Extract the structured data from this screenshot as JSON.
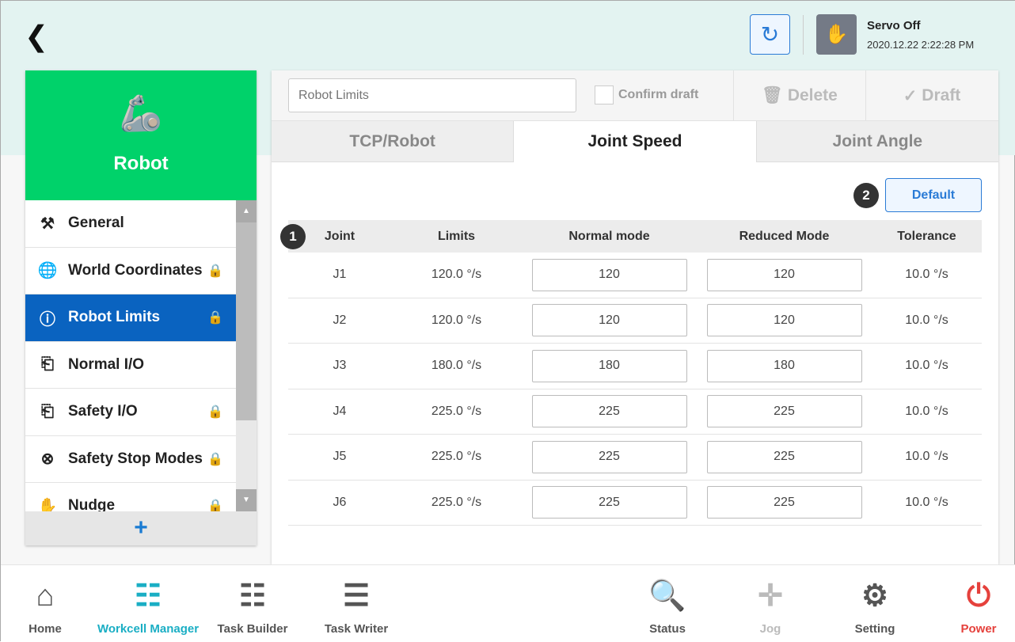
{
  "header": {
    "back_icon": "chevron-left-icon",
    "servo_status": "Servo Off",
    "datetime": "2020.12.22 2:22:28 PM"
  },
  "sidebar": {
    "title": "Robot",
    "add_label": "+",
    "items": [
      {
        "label": "General",
        "icon": "robot-arm-icon",
        "locked": false
      },
      {
        "label": "World Coordinates",
        "icon": "globe-icon",
        "locked": true
      },
      {
        "label": "Robot Limits",
        "icon": "limit-icon",
        "locked": true,
        "selected": true
      },
      {
        "label": "Normal I/O",
        "icon": "io-icon",
        "locked": false
      },
      {
        "label": "Safety I/O",
        "icon": "io-icon",
        "locked": true
      },
      {
        "label": "Safety Stop Modes",
        "icon": "stop-icon",
        "locked": true
      },
      {
        "label": "Nudge",
        "icon": "hand-icon",
        "locked": true
      }
    ]
  },
  "toolbar": {
    "name_placeholder": "Robot Limits",
    "confirm_label": "Confirm draft",
    "delete_label": "Delete",
    "draft_label": "Draft"
  },
  "tabs": [
    {
      "label": "TCP/Robot"
    },
    {
      "label": "Joint Speed",
      "active": true
    },
    {
      "label": "Joint Angle"
    }
  ],
  "main": {
    "default_label": "Default",
    "badge1": "1",
    "badge2": "2",
    "columns": [
      "Joint",
      "Limits",
      "Normal mode",
      "Reduced Mode",
      "Tolerance"
    ],
    "rows": [
      [
        "J1",
        "120.0 °/s",
        "120",
        "120",
        "10.0 °/s"
      ],
      [
        "J2",
        "120.0 °/s",
        "120",
        "120",
        "10.0 °/s"
      ],
      [
        "J3",
        "180.0 °/s",
        "180",
        "180",
        "10.0 °/s"
      ],
      [
        "J4",
        "225.0 °/s",
        "225",
        "225",
        "10.0 °/s"
      ],
      [
        "J5",
        "225.0 °/s",
        "225",
        "225",
        "10.0 °/s"
      ],
      [
        "J6",
        "225.0 °/s",
        "225",
        "225",
        "10.0 °/s"
      ]
    ]
  },
  "nav": [
    {
      "label": "Home",
      "icon": "home-icon",
      "color": "#555555"
    },
    {
      "label": "Workcell Manager",
      "icon": "workcell-icon",
      "color": "#1aaec4"
    },
    {
      "label": "Task Builder",
      "icon": "task-builder-icon",
      "color": "#555555"
    },
    {
      "label": "Task Writer",
      "icon": "task-writer-icon",
      "color": "#555555"
    },
    {
      "label": "Status",
      "icon": "status-icon",
      "color": "#555555"
    },
    {
      "label": "Jog",
      "icon": "jog-icon",
      "color": "#bbbbbb"
    },
    {
      "label": "Setting",
      "icon": "gear-icon",
      "color": "#555555"
    },
    {
      "label": "Power",
      "icon": "power-icon",
      "color": "#e5413c"
    }
  ]
}
